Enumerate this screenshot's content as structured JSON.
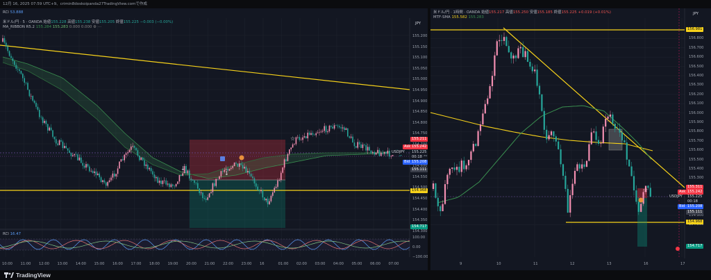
{
  "header": {
    "timestamp": "12月 16, 2025 07:59 UTC+9、crimin8doskoipanda27TradingView.comで作成"
  },
  "left_chart": {
    "rci_top_label": "RCI",
    "rci_top_value": "53.888",
    "symbol_line": "米ドル/円 · 5 · OANDA",
    "ohlc": {
      "open_label": "始値",
      "open": "155.228",
      "high_label": "高値",
      "high": "155.238",
      "low_label": "安値",
      "low": "155.205",
      "close_label": "終値",
      "close": "155.225",
      "change": "−0.003 (−0.00%)"
    },
    "indicator_label": "MA_RIBBON R5.2",
    "indicator_values": [
      "155.284",
      "155.283",
      "0.000",
      "0.000"
    ],
    "currency": "JPY",
    "y_ticks": [
      "155.200",
      "155.150",
      "155.100",
      "155.050",
      "155.000",
      "154.950",
      "154.900",
      "154.850",
      "154.800",
      "154.750",
      "154.700",
      "154.650",
      "154.600",
      "154.550",
      "154.500",
      "154.450",
      "154.400",
      "154.350",
      "154.300"
    ],
    "price_labels": {
      "top": "155.211",
      "ask_label": "Ask",
      "ask": "155.242",
      "symbol": "USDJPY",
      "price": "155.225",
      "countdown": "00:18",
      "bid_label": "Bid",
      "bid": "155.208",
      "below": "155.111",
      "line": "154.968",
      "bottom": "154.717"
    },
    "rci_label": "RCI",
    "rci_value": "16.47",
    "rci_ticks": [
      "100.00",
      "0.00",
      "−100.00"
    ],
    "x_ticks": [
      "10:00",
      "11:00",
      "12:00",
      "13:00",
      "14:00",
      "15:00",
      "16:00",
      "17:00",
      "18:00",
      "19:00",
      "20:00",
      "21:00",
      "22:00",
      "23:00",
      "16",
      "01:00",
      "02:00",
      "03:00",
      "04:00",
      "05:00",
      "06:00",
      "07:00"
    ]
  },
  "right_chart": {
    "symbol_line": "米ドル/円 · 1時間 · OANDA",
    "ohlc": {
      "open_label": "始値",
      "open": "155.217",
      "high_label": "高値",
      "high": "155.250",
      "low_label": "安値",
      "low": "155.185",
      "close_label": "終値",
      "close": "155.225",
      "change": "+0.019 (+0.01%)"
    },
    "indicator_label": "MTF-SMA",
    "indicator_values": [
      "155.582",
      "155.283"
    ],
    "currency": "JPY",
    "y_ticks": [
      "156.981",
      "156.800",
      "156.700",
      "156.600",
      "156.500",
      "156.400",
      "156.300",
      "156.200",
      "156.100",
      "156.000",
      "155.900",
      "155.800",
      "155.700",
      "155.600",
      "155.500",
      "155.400",
      "155.300",
      "155.200",
      "155.100",
      "155.000",
      "154.900",
      "154.800"
    ],
    "price_labels": {
      "top": "155.311",
      "ask_label": "Ask",
      "ask": "155.242",
      "symbol": "USDJPY",
      "price": "155.225",
      "countdown": "00:18",
      "bid_label": "Bid",
      "bid": "155.208",
      "below": "155.111",
      "line": "154.968",
      "bottom": "154.717"
    },
    "x_ticks": [
      "9",
      "10",
      "11",
      "12",
      "13",
      "16",
      "17"
    ]
  },
  "footer": {
    "brand": "TradingView"
  },
  "colors": {
    "bg": "#131722",
    "up": "#f48fb1",
    "down": "#26a69a",
    "yellow": "#f7d21a",
    "ma_green": "#3a8f50"
  }
}
